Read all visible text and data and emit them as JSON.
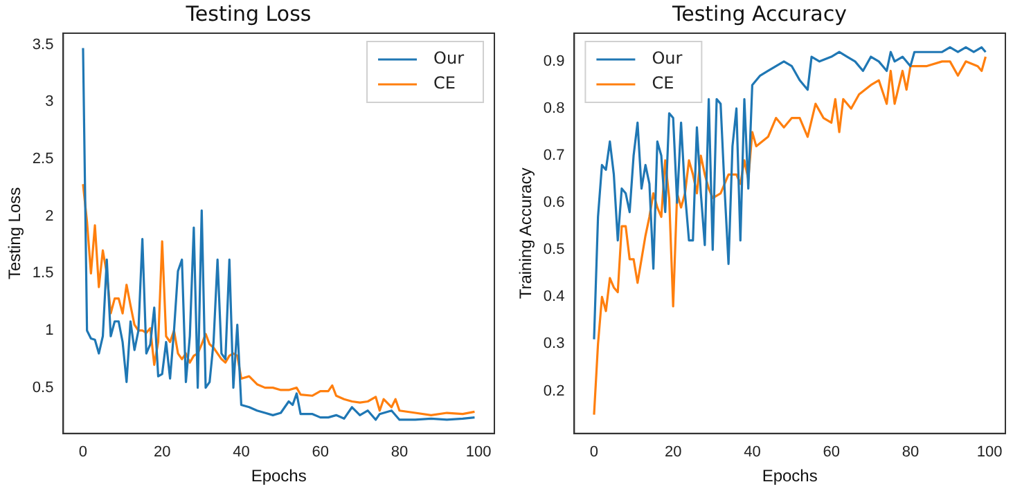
{
  "chart_data": [
    {
      "type": "line",
      "title": "Testing Loss",
      "xlabel": "Epochs",
      "ylabel": "Testing Loss",
      "xlim": [
        -5,
        104
      ],
      "xticks": [
        0,
        20,
        40,
        60,
        80,
        100
      ],
      "ylim": [
        0.1,
        3.6
      ],
      "yticks": [
        0.5,
        1.0,
        1.5,
        2.0,
        2.5,
        3.0,
        3.5
      ],
      "grid": false,
      "legend": "top right",
      "marker": "none",
      "line_style": "solid",
      "series": [
        {
          "name": "Our",
          "color": "#1f77b4",
          "x": [
            0,
            1,
            2,
            3,
            4,
            5,
            6,
            7,
            8,
            9,
            10,
            11,
            12,
            13,
            14,
            15,
            16,
            17,
            18,
            19,
            20,
            21,
            22,
            23,
            24,
            25,
            26,
            27,
            28,
            29,
            30,
            31,
            32,
            33,
            34,
            35,
            36,
            37,
            38,
            39,
            40,
            42,
            44,
            46,
            48,
            50,
            52,
            53,
            54,
            55,
            58,
            60,
            62,
            64,
            66,
            68,
            70,
            72,
            74,
            75,
            78,
            80,
            84,
            88,
            92,
            96,
            99
          ],
          "values": [
            3.47,
            1.0,
            0.93,
            0.92,
            0.8,
            0.95,
            1.62,
            0.95,
            1.08,
            1.08,
            0.9,
            0.55,
            1.08,
            0.83,
            1.0,
            1.8,
            0.8,
            0.88,
            1.2,
            0.6,
            0.62,
            0.9,
            0.58,
            1.0,
            1.52,
            1.62,
            0.55,
            0.95,
            1.9,
            0.5,
            2.05,
            0.5,
            0.55,
            0.9,
            1.62,
            0.8,
            0.75,
            1.62,
            0.5,
            1.05,
            0.35,
            0.33,
            0.3,
            0.28,
            0.26,
            0.28,
            0.38,
            0.35,
            0.45,
            0.27,
            0.27,
            0.24,
            0.24,
            0.26,
            0.23,
            0.33,
            0.26,
            0.3,
            0.22,
            0.27,
            0.3,
            0.22,
            0.22,
            0.23,
            0.22,
            0.23,
            0.24
          ]
        },
        {
          "name": "CE",
          "color": "#ff7f0e",
          "x": [
            0,
            1,
            2,
            3,
            4,
            5,
            6,
            7,
            8,
            9,
            10,
            11,
            12,
            13,
            14,
            15,
            16,
            17,
            18,
            19,
            20,
            21,
            22,
            23,
            24,
            25,
            26,
            27,
            28,
            29,
            30,
            31,
            32,
            33,
            34,
            35,
            36,
            37,
            38,
            39,
            40,
            42,
            44,
            46,
            48,
            50,
            52,
            54,
            55,
            58,
            60,
            62,
            63,
            64,
            66,
            68,
            70,
            72,
            74,
            75,
            76,
            78,
            79,
            80,
            84,
            88,
            92,
            96,
            99
          ],
          "values": [
            2.28,
            1.95,
            1.5,
            1.92,
            1.38,
            1.7,
            1.5,
            1.15,
            1.28,
            1.28,
            1.15,
            1.4,
            1.22,
            1.05,
            1.0,
            1.0,
            0.98,
            1.02,
            0.7,
            0.9,
            1.78,
            0.95,
            0.9,
            1.0,
            0.8,
            0.75,
            0.8,
            0.72,
            0.78,
            0.8,
            0.88,
            0.97,
            0.88,
            0.85,
            0.8,
            0.75,
            0.72,
            0.78,
            0.8,
            0.78,
            0.58,
            0.6,
            0.53,
            0.5,
            0.5,
            0.48,
            0.48,
            0.5,
            0.44,
            0.43,
            0.47,
            0.47,
            0.52,
            0.43,
            0.4,
            0.38,
            0.37,
            0.38,
            0.42,
            0.3,
            0.4,
            0.33,
            0.4,
            0.3,
            0.28,
            0.26,
            0.28,
            0.27,
            0.29
          ]
        }
      ]
    },
    {
      "type": "line",
      "title": "Testing Accuracy",
      "xlabel": "Epochs",
      "ylabel": "Training Accuracy",
      "xlim": [
        -5,
        104
      ],
      "xticks": [
        0,
        20,
        40,
        60,
        80,
        100
      ],
      "ylim": [
        0.11,
        0.96
      ],
      "yticks": [
        0.2,
        0.3,
        0.4,
        0.5,
        0.6,
        0.7,
        0.8,
        0.9
      ],
      "grid": false,
      "legend": "top left",
      "marker": "none",
      "line_style": "solid",
      "series": [
        {
          "name": "Our",
          "color": "#1f77b4",
          "x": [
            0,
            1,
            2,
            3,
            4,
            5,
            6,
            7,
            8,
            9,
            10,
            11,
            12,
            13,
            14,
            15,
            16,
            17,
            18,
            19,
            20,
            21,
            22,
            23,
            24,
            25,
            26,
            27,
            28,
            29,
            30,
            31,
            32,
            33,
            34,
            35,
            36,
            37,
            38,
            39,
            40,
            42,
            44,
            46,
            48,
            50,
            52,
            54,
            55,
            57,
            60,
            62,
            64,
            66,
            68,
            70,
            72,
            74,
            75,
            76,
            78,
            80,
            81,
            85,
            88,
            90,
            92,
            94,
            96,
            98,
            99
          ],
          "values": [
            0.31,
            0.57,
            0.68,
            0.67,
            0.73,
            0.66,
            0.52,
            0.63,
            0.62,
            0.58,
            0.7,
            0.77,
            0.63,
            0.68,
            0.64,
            0.46,
            0.73,
            0.7,
            0.58,
            0.79,
            0.78,
            0.6,
            0.77,
            0.62,
            0.52,
            0.52,
            0.76,
            0.62,
            0.51,
            0.82,
            0.5,
            0.82,
            0.81,
            0.63,
            0.47,
            0.72,
            0.8,
            0.52,
            0.82,
            0.63,
            0.85,
            0.87,
            0.88,
            0.89,
            0.9,
            0.89,
            0.86,
            0.84,
            0.91,
            0.9,
            0.91,
            0.92,
            0.91,
            0.9,
            0.88,
            0.91,
            0.9,
            0.88,
            0.92,
            0.9,
            0.91,
            0.89,
            0.92,
            0.92,
            0.92,
            0.93,
            0.92,
            0.93,
            0.92,
            0.93,
            0.92
          ]
        },
        {
          "name": "CE",
          "color": "#ff7f0e",
          "x": [
            0,
            1,
            2,
            3,
            4,
            5,
            6,
            7,
            8,
            9,
            10,
            11,
            12,
            13,
            14,
            15,
            16,
            17,
            18,
            19,
            20,
            21,
            22,
            23,
            24,
            25,
            26,
            27,
            28,
            29,
            30,
            32,
            34,
            36,
            37,
            38,
            39,
            40,
            41,
            44,
            46,
            48,
            50,
            52,
            54,
            56,
            58,
            60,
            61,
            62,
            63,
            65,
            67,
            70,
            72,
            74,
            75,
            76,
            78,
            79,
            80,
            84,
            88,
            90,
            92,
            94,
            97,
            98,
            99
          ],
          "values": [
            0.15,
            0.3,
            0.4,
            0.37,
            0.44,
            0.42,
            0.41,
            0.55,
            0.55,
            0.48,
            0.48,
            0.43,
            0.48,
            0.53,
            0.57,
            0.62,
            0.59,
            0.57,
            0.69,
            0.61,
            0.38,
            0.62,
            0.59,
            0.62,
            0.69,
            0.66,
            0.62,
            0.7,
            0.66,
            0.63,
            0.61,
            0.62,
            0.66,
            0.66,
            0.64,
            0.69,
            0.65,
            0.75,
            0.72,
            0.74,
            0.78,
            0.76,
            0.78,
            0.78,
            0.74,
            0.81,
            0.78,
            0.77,
            0.82,
            0.75,
            0.82,
            0.8,
            0.83,
            0.85,
            0.86,
            0.81,
            0.88,
            0.81,
            0.88,
            0.84,
            0.89,
            0.89,
            0.9,
            0.9,
            0.87,
            0.9,
            0.89,
            0.88,
            0.91
          ]
        }
      ]
    }
  ]
}
